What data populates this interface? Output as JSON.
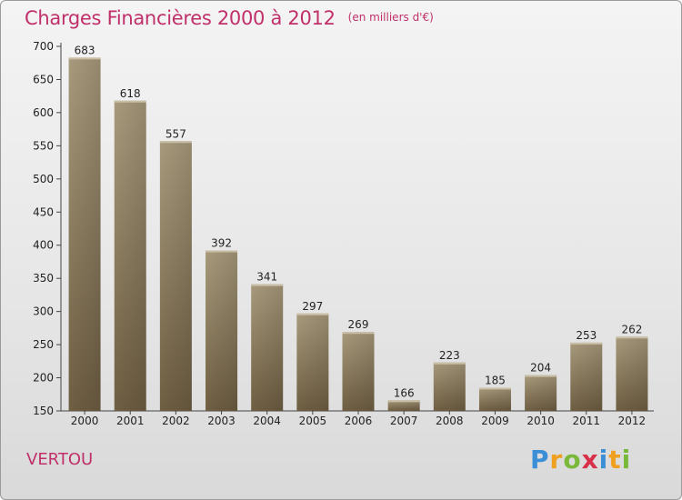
{
  "header": {
    "title": "Charges Financières 2000 à 2012",
    "subtitle": "(en milliers d'€)"
  },
  "commune": "VERTOU",
  "logo": {
    "text": "Proxiti",
    "letters": [
      {
        "char": "P",
        "color": "#3a8fd6"
      },
      {
        "char": "r",
        "color": "#f0a020"
      },
      {
        "char": "o",
        "color": "#7ab83a"
      },
      {
        "char": "x",
        "color": "#d8304a"
      },
      {
        "char": "i",
        "color": "#3a8fd6"
      },
      {
        "char": "t",
        "color": "#f0a020"
      },
      {
        "char": "i",
        "color": "#7ab83a"
      }
    ]
  },
  "chart_data": {
    "type": "bar",
    "title": "Charges Financières 2000 à 2012",
    "subtitle": "(en milliers d'€)",
    "categories": [
      "2000",
      "2001",
      "2002",
      "2003",
      "2004",
      "2005",
      "2006",
      "2007",
      "2008",
      "2009",
      "2010",
      "2011",
      "2012"
    ],
    "values": [
      683,
      618,
      557,
      392,
      341,
      297,
      269,
      166,
      223,
      185,
      204,
      253,
      262
    ],
    "xlabel": "",
    "ylabel": "",
    "ylim": [
      150,
      700
    ],
    "yticks": [
      150,
      200,
      250,
      300,
      350,
      400,
      450,
      500,
      550,
      600,
      650,
      700
    ],
    "grid": false,
    "bar_color": "#8a7858"
  }
}
